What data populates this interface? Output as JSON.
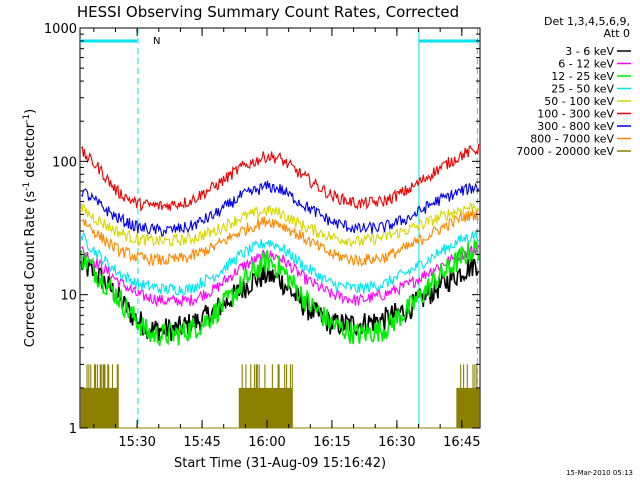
{
  "chart_data": {
    "type": "line",
    "title": "HESSI Observing Summary Count Rates, Corrected",
    "xlabel": "Start Time (31-Aug-09 15:16:42)",
    "ylabel_parts": [
      "Corrected Count Rate (s",
      "-1",
      " detector",
      "-1",
      ")"
    ],
    "y_scale": "log",
    "ylim": [
      1,
      1000
    ],
    "xlim": [
      15.28,
      16.82
    ],
    "x_ticks": [
      {
        "value": 15.5,
        "label": "15:30"
      },
      {
        "value": 15.75,
        "label": "15:45"
      },
      {
        "value": 16.0,
        "label": "16:00"
      },
      {
        "value": 16.25,
        "label": "16:15"
      },
      {
        "value": 16.5,
        "label": "16:30"
      },
      {
        "value": 16.75,
        "label": "16:45"
      }
    ],
    "y_ticks": [
      {
        "value": 1,
        "label": "1"
      },
      {
        "value": 10,
        "label": "10"
      },
      {
        "value": 100,
        "label": "100"
      },
      {
        "value": 1000,
        "label": "1000"
      }
    ],
    "legend_header": [
      "Det 1,3,4,5,6,9,",
      "Att 0"
    ],
    "legend_position": "top-right, outside plot",
    "timestamp": "15-Mar-2010 05:13",
    "annotation_label": "N",
    "annotation_color": "#00e5ee",
    "night_bars": [
      [
        15.28,
        15.5
      ],
      [
        16.585,
        16.82
      ]
    ],
    "dashed_lines": [
      15.503,
      16.81
    ],
    "solid_lines": [
      16.585
    ],
    "series": [
      {
        "name": "3 - 6 keV",
        "color": "#000000",
        "points": [
          [
            15.28,
            17
          ],
          [
            15.35,
            14
          ],
          [
            15.42,
            10
          ],
          [
            15.48,
            7
          ],
          [
            15.55,
            5.5
          ],
          [
            15.65,
            5.5
          ],
          [
            15.75,
            6.5
          ],
          [
            15.85,
            9
          ],
          [
            15.95,
            13
          ],
          [
            16.0,
            14
          ],
          [
            16.05,
            13
          ],
          [
            16.15,
            8
          ],
          [
            16.25,
            6
          ],
          [
            16.35,
            6
          ],
          [
            16.45,
            6.5
          ],
          [
            16.55,
            8
          ],
          [
            16.65,
            11
          ],
          [
            16.75,
            15
          ],
          [
            16.8,
            17
          ]
        ]
      },
      {
        "name": "6 - 12 keV",
        "color": "#ff00ff",
        "points": [
          [
            15.28,
            22
          ],
          [
            15.35,
            17
          ],
          [
            15.42,
            13
          ],
          [
            15.5,
            10
          ],
          [
            15.6,
            9
          ],
          [
            15.7,
            9
          ],
          [
            15.8,
            11
          ],
          [
            15.9,
            16
          ],
          [
            16.0,
            20
          ],
          [
            16.05,
            19
          ],
          [
            16.15,
            13
          ],
          [
            16.25,
            10
          ],
          [
            16.35,
            9
          ],
          [
            16.45,
            10
          ],
          [
            16.55,
            12
          ],
          [
            16.65,
            16
          ],
          [
            16.75,
            20
          ],
          [
            16.8,
            22
          ]
        ]
      },
      {
        "name": "12 - 25 keV",
        "color": "#00ee00",
        "points": [
          [
            15.28,
            20
          ],
          [
            15.35,
            14
          ],
          [
            15.42,
            10
          ],
          [
            15.48,
            7
          ],
          [
            15.55,
            5
          ],
          [
            15.65,
            5
          ],
          [
            15.75,
            6
          ],
          [
            15.85,
            9
          ],
          [
            15.95,
            15
          ],
          [
            16.0,
            18
          ],
          [
            16.05,
            16
          ],
          [
            16.15,
            9
          ],
          [
            16.25,
            6
          ],
          [
            16.35,
            5
          ],
          [
            16.45,
            5.5
          ],
          [
            16.55,
            8
          ],
          [
            16.65,
            13
          ],
          [
            16.75,
            19
          ],
          [
            16.8,
            22
          ]
        ]
      },
      {
        "name": "25 - 50 keV",
        "color": "#00e5ee",
        "points": [
          [
            15.28,
            28
          ],
          [
            15.35,
            20
          ],
          [
            15.42,
            15
          ],
          [
            15.5,
            12
          ],
          [
            15.6,
            11
          ],
          [
            15.7,
            11
          ],
          [
            15.8,
            14
          ],
          [
            15.9,
            20
          ],
          [
            16.0,
            25
          ],
          [
            16.05,
            23
          ],
          [
            16.15,
            16
          ],
          [
            16.25,
            12
          ],
          [
            16.35,
            11
          ],
          [
            16.45,
            12
          ],
          [
            16.55,
            15
          ],
          [
            16.65,
            20
          ],
          [
            16.75,
            26
          ],
          [
            16.8,
            28
          ]
        ]
      },
      {
        "name": "50 - 100 keV",
        "color": "#d8d800",
        "points": [
          [
            15.28,
            45
          ],
          [
            15.35,
            36
          ],
          [
            15.42,
            30
          ],
          [
            15.5,
            26
          ],
          [
            15.6,
            25
          ],
          [
            15.7,
            26
          ],
          [
            15.8,
            30
          ],
          [
            15.9,
            38
          ],
          [
            16.0,
            43
          ],
          [
            16.05,
            41
          ],
          [
            16.15,
            32
          ],
          [
            16.25,
            27
          ],
          [
            16.35,
            25
          ],
          [
            16.45,
            27
          ],
          [
            16.55,
            31
          ],
          [
            16.65,
            37
          ],
          [
            16.75,
            44
          ],
          [
            16.8,
            46
          ]
        ]
      },
      {
        "name": "100 - 300 keV",
        "color": "#ee0000",
        "points": [
          [
            15.28,
            120
          ],
          [
            15.35,
            90
          ],
          [
            15.42,
            60
          ],
          [
            15.5,
            48
          ],
          [
            15.6,
            46
          ],
          [
            15.7,
            50
          ],
          [
            15.8,
            65
          ],
          [
            15.9,
            90
          ],
          [
            16.0,
            110
          ],
          [
            16.05,
            105
          ],
          [
            16.15,
            75
          ],
          [
            16.25,
            55
          ],
          [
            16.35,
            48
          ],
          [
            16.45,
            50
          ],
          [
            16.55,
            62
          ],
          [
            16.65,
            85
          ],
          [
            16.75,
            112
          ],
          [
            16.8,
            122
          ]
        ]
      },
      {
        "name": "300 - 800 keV",
        "color": "#0000ee",
        "points": [
          [
            15.28,
            62
          ],
          [
            15.35,
            48
          ],
          [
            15.42,
            38
          ],
          [
            15.5,
            32
          ],
          [
            15.6,
            30
          ],
          [
            15.7,
            32
          ],
          [
            15.8,
            40
          ],
          [
            15.9,
            55
          ],
          [
            16.0,
            65
          ],
          [
            16.05,
            62
          ],
          [
            16.15,
            46
          ],
          [
            16.25,
            35
          ],
          [
            16.35,
            31
          ],
          [
            16.45,
            32
          ],
          [
            16.55,
            38
          ],
          [
            16.65,
            50
          ],
          [
            16.75,
            60
          ],
          [
            16.8,
            64
          ]
        ]
      },
      {
        "name": "800 - 7000 keV",
        "color": "#ff8800",
        "points": [
          [
            15.28,
            38
          ],
          [
            15.35,
            28
          ],
          [
            15.42,
            22
          ],
          [
            15.5,
            19
          ],
          [
            15.6,
            18
          ],
          [
            15.7,
            19
          ],
          [
            15.8,
            23
          ],
          [
            15.9,
            30
          ],
          [
            16.0,
            36
          ],
          [
            16.05,
            34
          ],
          [
            16.15,
            26
          ],
          [
            16.25,
            20
          ],
          [
            16.35,
            18
          ],
          [
            16.45,
            19
          ],
          [
            16.55,
            23
          ],
          [
            16.65,
            30
          ],
          [
            16.75,
            38
          ],
          [
            16.8,
            40
          ]
        ]
      },
      {
        "name": "7000 - 20000 keV",
        "color": "#8b8000",
        "points": [
          [
            15.28,
            1
          ],
          [
            15.43,
            1
          ],
          [
            15.9,
            1
          ],
          [
            16.1,
            1
          ],
          [
            16.73,
            1
          ],
          [
            16.82,
            1
          ]
        ]
      }
    ]
  }
}
